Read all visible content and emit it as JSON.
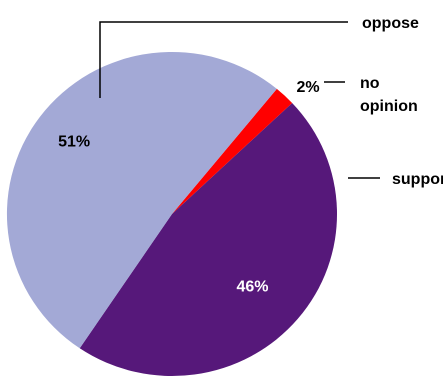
{
  "chart_data": {
    "type": "pie",
    "categories": [
      "oppose",
      "no opinion",
      "support"
    ],
    "values": [
      51,
      2,
      46
    ],
    "value_labels": [
      "51%",
      "2%",
      "46%"
    ],
    "label_lines": [
      [
        "oppose"
      ],
      [
        "no",
        "opinion"
      ],
      [
        "support"
      ]
    ],
    "colors": [
      "#a3a9d6",
      "#ff0000",
      "#56187a"
    ],
    "value_label_colors": [
      "#000000",
      "#000000",
      "#ffffff"
    ],
    "title": "",
    "legend": "none",
    "grid": false
  }
}
